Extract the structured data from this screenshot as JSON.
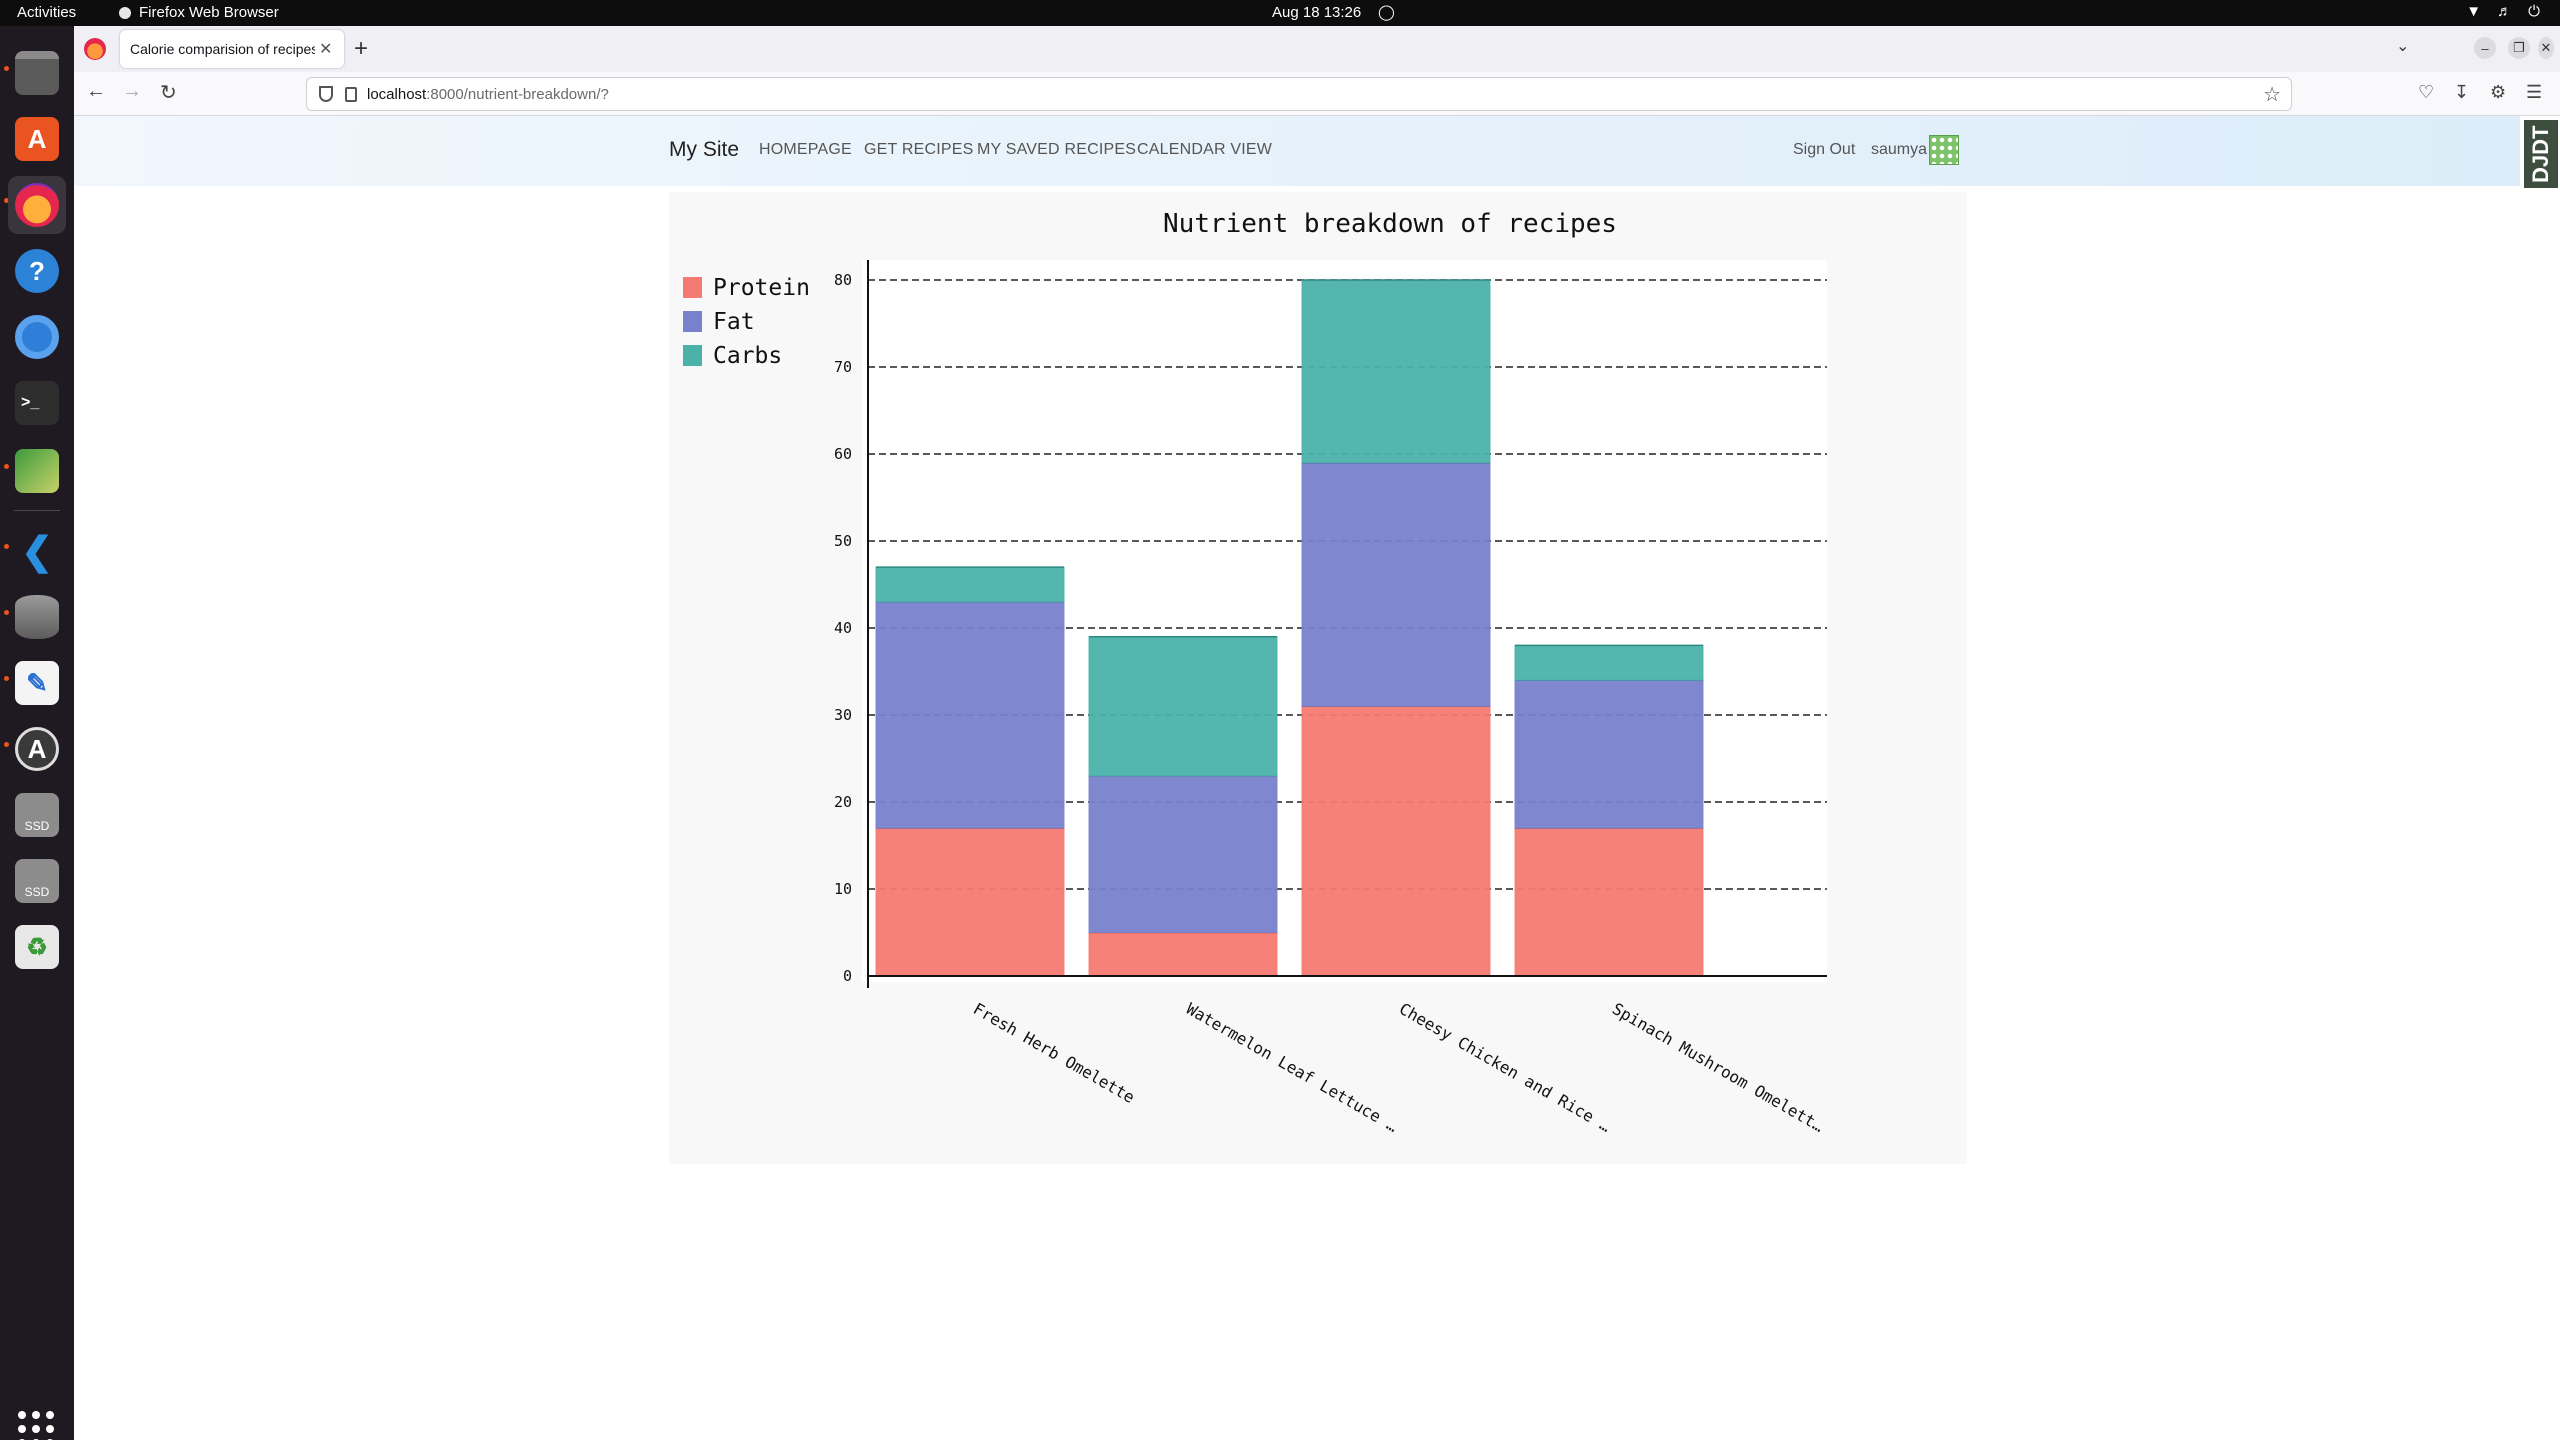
{
  "system_bar": {
    "activities": "Activities",
    "app_name": "Firefox Web Browser",
    "clock": "Aug 18  13:26"
  },
  "dock": {
    "items": [
      "files-icon",
      "app-center-icon",
      "firefox-icon",
      "help-icon",
      "chromium-icon",
      "terminal-icon",
      "image-editor-icon",
      "vscode-icon",
      "database-icon",
      "text-editor-icon",
      "software-updater-icon",
      "ssd-drive-icon",
      "ssd-drive-icon",
      "trash-icon"
    ],
    "ssd_label": "SSD"
  },
  "browser": {
    "tab_title": "Calorie comparision of recipes",
    "url_host": "localhost",
    "url_path": ":8000/nutrient-breakdown/?"
  },
  "site": {
    "brand": "My Site",
    "nav": [
      "HOMEPAGE",
      "GET RECIPES",
      "MY SAVED RECIPES",
      "CALENDAR VIEW"
    ],
    "sign_out": "Sign Out",
    "username": "saumya",
    "toolbar_badge": "DJDT"
  },
  "colors": {
    "protein": "#f57a71",
    "fat": "#7882cc",
    "carbs": "#4bb2aa"
  },
  "chart_data": {
    "type": "bar",
    "stacked": true,
    "title": "Nutrient breakdown of recipes",
    "categories": [
      "Fresh Herb Omelette",
      "Watermelon Leaf Lettuce …",
      "Cheesy Chicken and Rice …",
      "Spinach Mushroom Omelett…"
    ],
    "series": [
      {
        "name": "Protein",
        "values": [
          17,
          5,
          31,
          17
        ]
      },
      {
        "name": "Fat",
        "values": [
          26,
          18,
          28,
          17
        ]
      },
      {
        "name": "Carbs",
        "values": [
          4,
          16,
          21,
          4
        ]
      }
    ],
    "yticks": [
      0,
      10,
      20,
      30,
      40,
      50,
      60,
      70,
      80
    ],
    "ylim": [
      0,
      80
    ],
    "grid": true,
    "legend": "top-left"
  }
}
